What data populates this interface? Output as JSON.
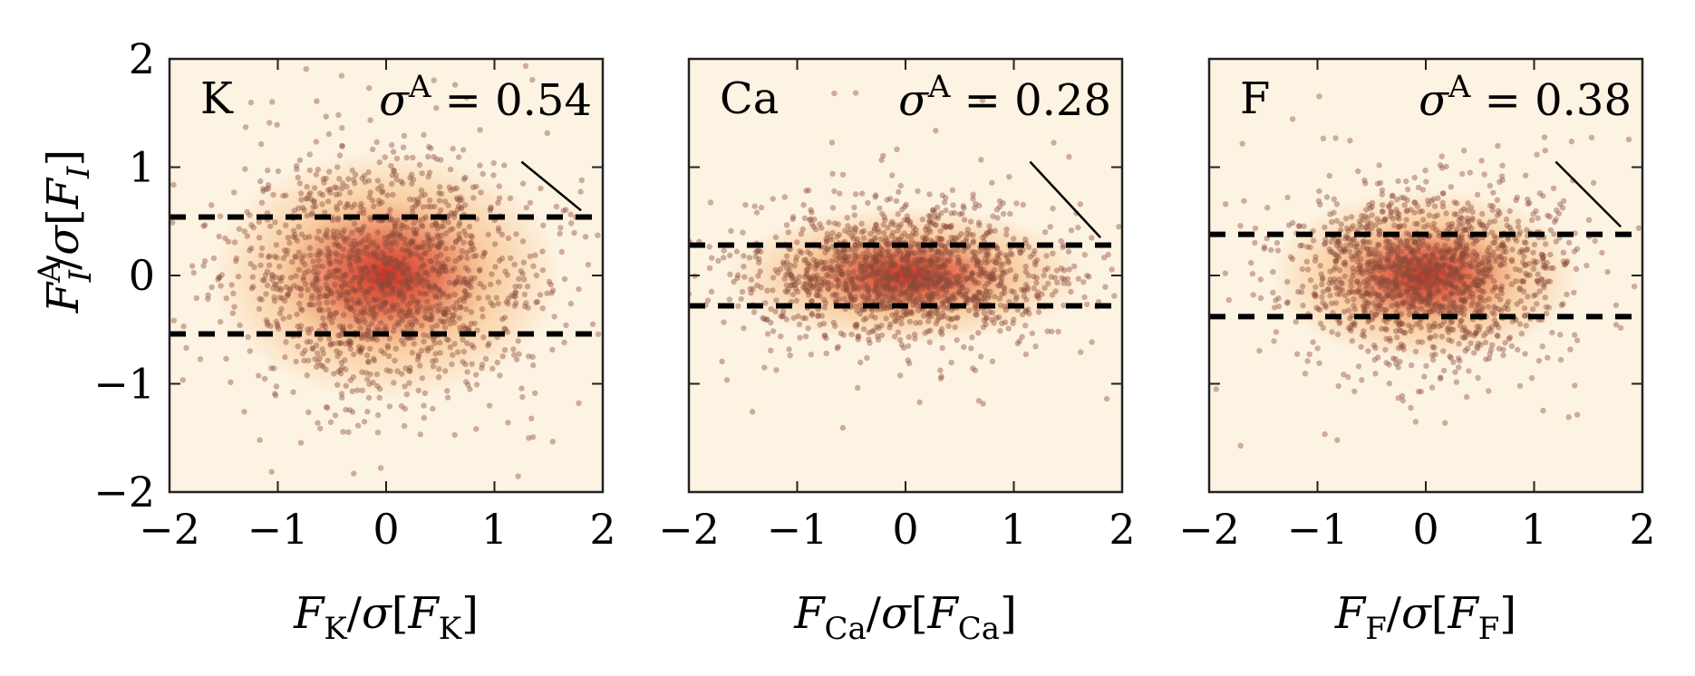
{
  "chart_data": [
    {
      "type": "scatter",
      "panel_label": "K",
      "annotation": {
        "symbol": "σ",
        "sup": "A",
        "text": " = 0.54"
      },
      "sigma": 0.54,
      "xlabel": {
        "main": "F",
        "sub": "K",
        "rest": "/σ[F",
        "sub2": "K",
        "close": "]"
      },
      "ylabel": {
        "main": "F",
        "sup": "A",
        "sub": "I",
        "rest": "/σ[F",
        "sub2": "I",
        "close": "]"
      },
      "xlim": [
        -2,
        2
      ],
      "ylim": [
        -2,
        2
      ],
      "x_spread": 0.7,
      "y_spread": 0.55,
      "seed": 11,
      "dashed_lines_y": [
        0.54,
        -0.54
      ],
      "trend_line": {
        "x": [
          1.25,
          1.8
        ],
        "y": [
          1.05,
          0.6
        ]
      }
    },
    {
      "type": "scatter",
      "panel_label": "Ca",
      "annotation": {
        "symbol": "σ",
        "sup": "A",
        "text": " = 0.28"
      },
      "sigma": 0.28,
      "xlabel": {
        "main": "F",
        "sub": "Ca",
        "rest": "/σ[F",
        "sub2": "Ca",
        "close": "]"
      },
      "xlim": [
        -2,
        2
      ],
      "ylim": [
        -2,
        2
      ],
      "x_spread": 0.72,
      "y_spread": 0.3,
      "seed": 23,
      "dashed_lines_y": [
        0.28,
        -0.28
      ],
      "trend_line": {
        "x": [
          1.15,
          1.8
        ],
        "y": [
          1.05,
          0.35
        ]
      }
    },
    {
      "type": "scatter",
      "panel_label": "F",
      "annotation": {
        "symbol": "σ",
        "sup": "A",
        "text": " = 0.38"
      },
      "sigma": 0.38,
      "xlabel": {
        "main": "F",
        "sub": "F",
        "rest": "/σ[F",
        "sub2": "F",
        "close": "]"
      },
      "xlim": [
        -2,
        2
      ],
      "ylim": [
        -2,
        2
      ],
      "x_spread": 0.62,
      "y_spread": 0.38,
      "seed": 37,
      "dashed_lines_y": [
        0.38,
        -0.38
      ],
      "trend_line": {
        "x": [
          1.2,
          1.8
        ],
        "y": [
          1.05,
          0.45
        ]
      }
    }
  ],
  "ticks": {
    "x": [
      -2,
      -1,
      0,
      1,
      2
    ],
    "y": [
      -2,
      -1,
      0,
      1,
      2
    ],
    "x_labels": [
      "−2",
      "−1",
      "0",
      "1",
      "2"
    ],
    "y_labels": [
      "−2",
      "−1",
      "0",
      "1",
      "2"
    ]
  },
  "colors": {
    "background": "#fdf3e2",
    "points": "#8a4a3a",
    "density_mid": "#f3a354",
    "density_core": "#d2241a",
    "frame": "#222222",
    "dash": "#000000"
  }
}
